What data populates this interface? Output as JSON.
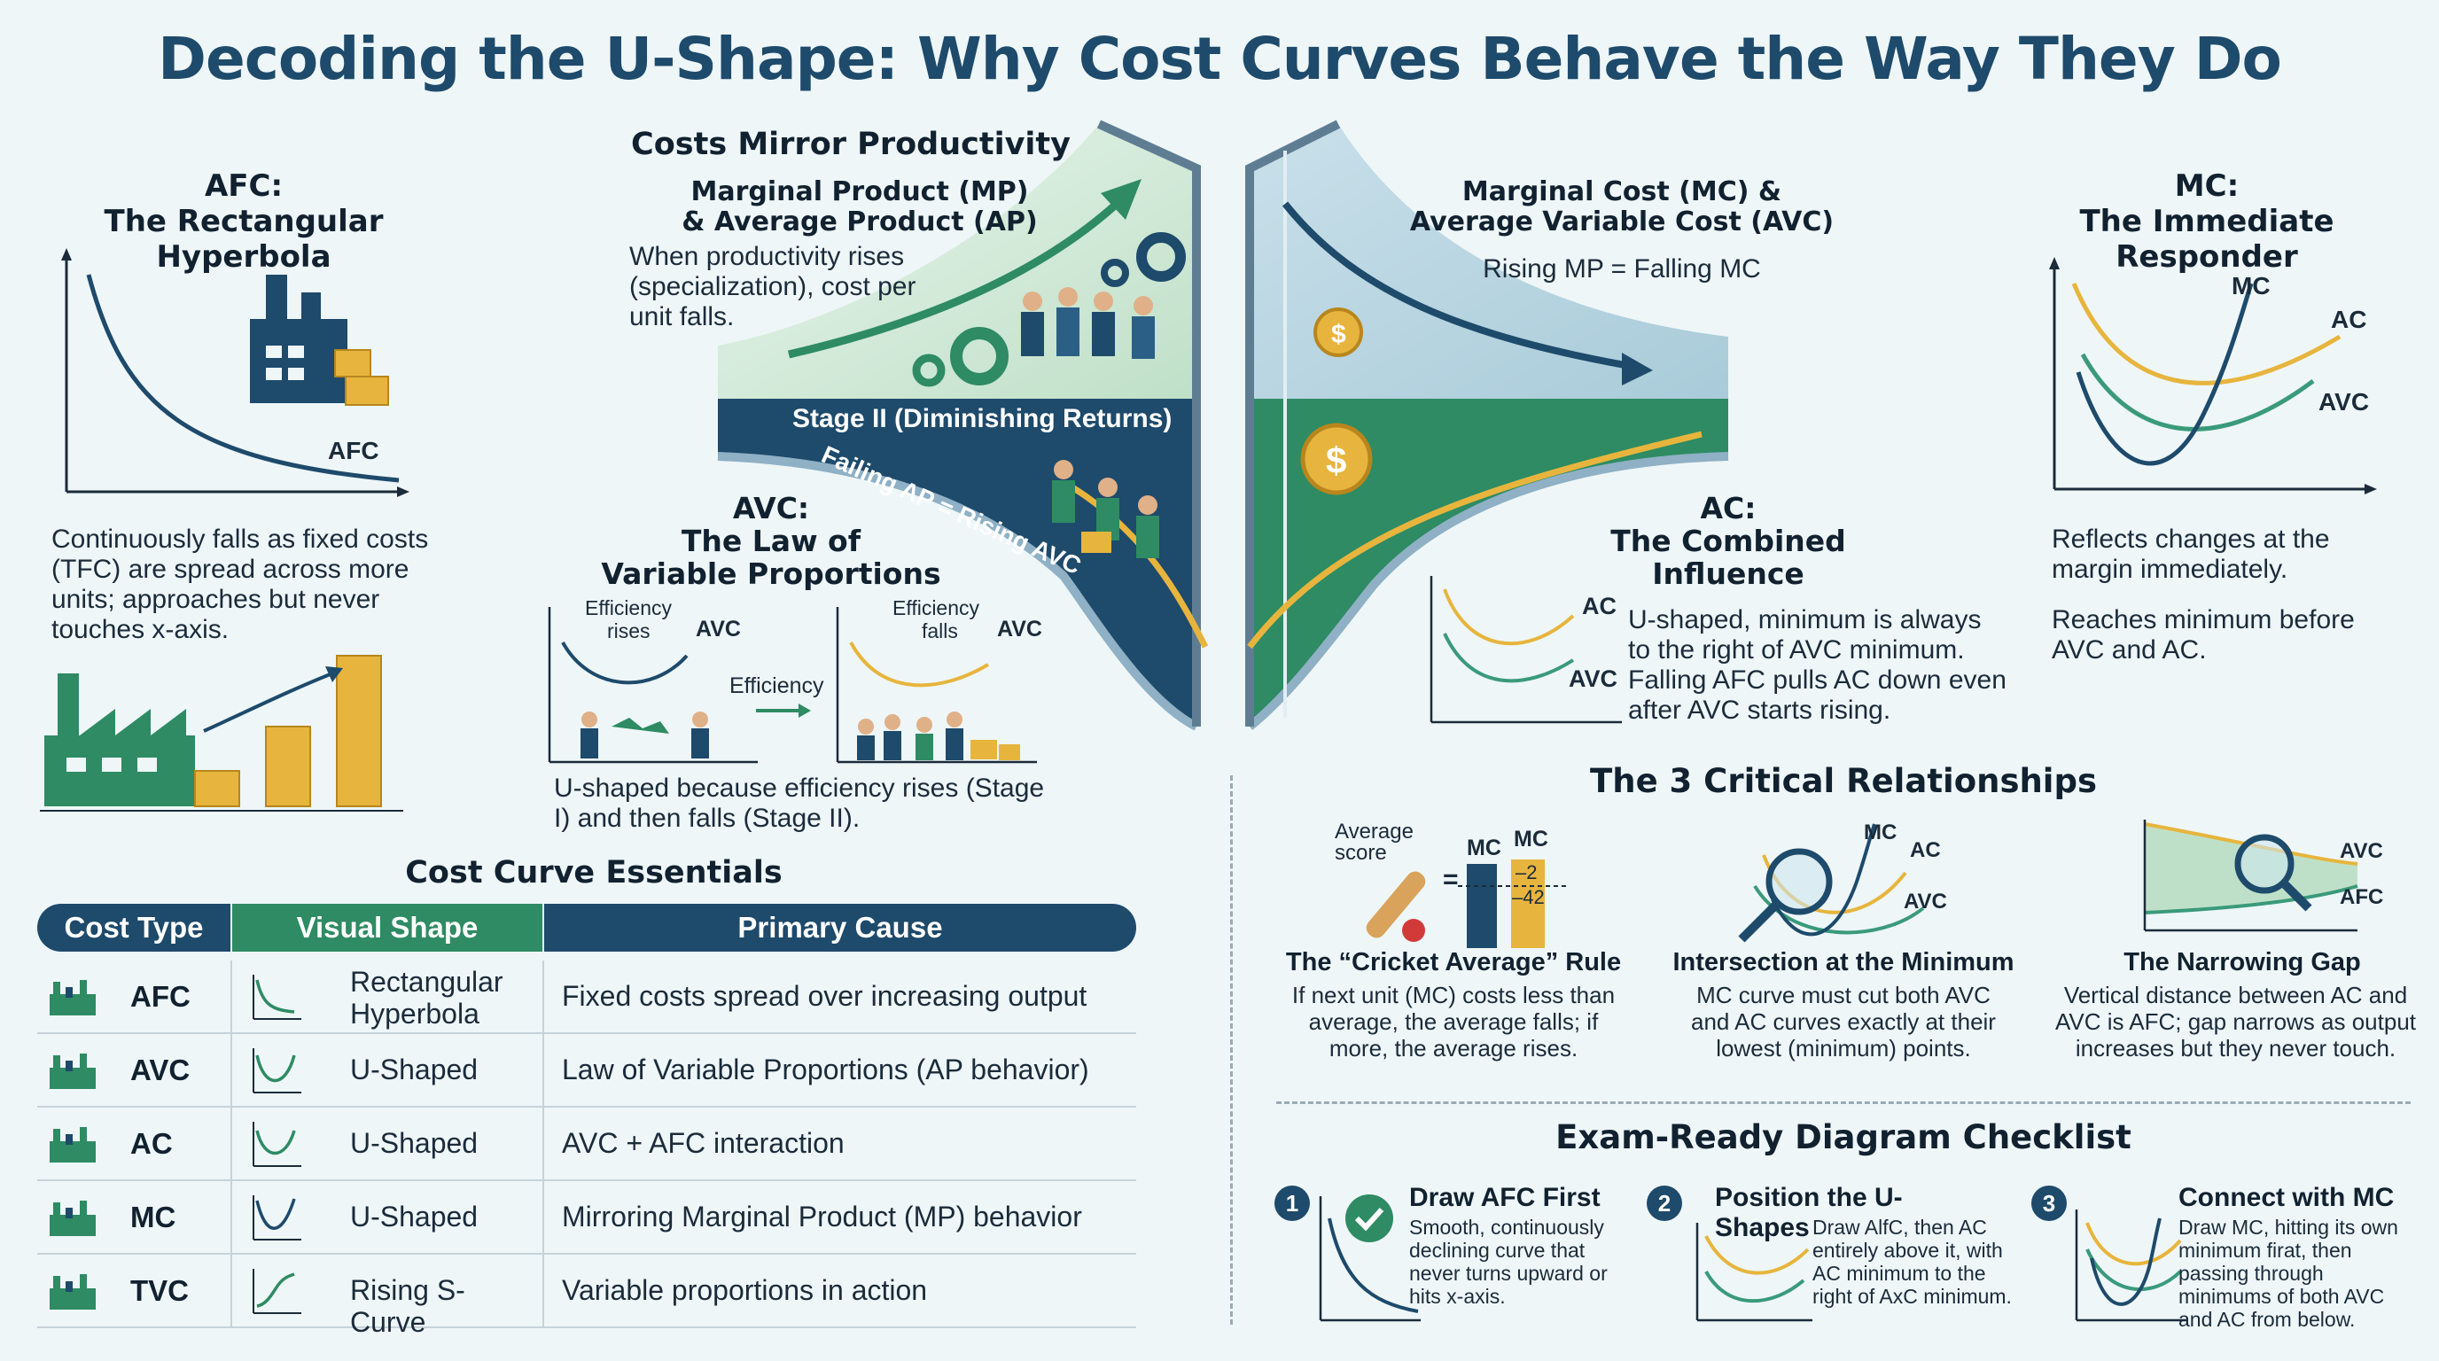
{
  "title": "Decoding the U-Shape: Why Cost Curves Behave the Way They Do",
  "afc": {
    "heading_line1": "AFC:",
    "heading_line2": "The Rectangular Hyperbola",
    "curve_label": "AFC",
    "description": "Continuously falls as fixed costs (TFC) are spread across more units; approaches but never touches x-axis."
  },
  "productivity": {
    "heading": "Costs Mirror Productivity",
    "mp_ap_line1": "Marginal Product (MP)",
    "mp_ap_line2": "& Average Product (AP)",
    "mp_ap_text": "When productivity rises (specialization), cost per unit falls.",
    "stage_banner": "Stage II (Diminishing Returns)",
    "failing_text": "Failing AP = Rising AVC",
    "mc_avc_line1": "Marginal Cost (MC) &",
    "mc_avc_line2": "Average Variable Cost (AVC)",
    "mc_avc_text": "Rising MP = Falling MC"
  },
  "avc": {
    "heading_line1": "AVC:",
    "heading_line2": "The Law of",
    "heading_line3": "Variable Proportions",
    "eff_rises_1": "Efficiency",
    "eff_rises_2": "rises",
    "eff_falls_1": "Efficiency",
    "eff_falls_2": "falls",
    "curve_label": "AVC",
    "arrow_label": "Efficiency",
    "description": "U-shaped because efficiency rises (Stage I) and then falls (Stage II)."
  },
  "ac": {
    "heading_line1": "AC:",
    "heading_line2": "The Combined",
    "heading_line3": "Influence",
    "label_ac": "AC",
    "label_avc": "AVC",
    "description": "U-shaped, minimum is always to the right of AVC minimum. Falling AFC pulls AC down even after AVC starts rising."
  },
  "mc": {
    "heading_line1": "MC:",
    "heading_line2": "The Immediate Responder",
    "label_mc": "MC",
    "label_ac": "AC",
    "label_avc": "AVC",
    "text1": "Reflects changes at the margin immediately.",
    "text2": "Reaches minimum before AVC and AC."
  },
  "essentials": {
    "heading": "Cost Curve Essentials",
    "columns": [
      "Cost Type",
      "Visual Shape",
      "Primary Cause"
    ],
    "rows": [
      {
        "type": "AFC",
        "shape": "Rectangular Hyperbola",
        "cause": "Fixed costs spread over increasing output",
        "icon": "factory-icon"
      },
      {
        "type": "AVC",
        "shape": "U-Shaped",
        "cause": "Law of Variable Proportions (AP behavior)",
        "icon": "bar-chart-icon"
      },
      {
        "type": "AC",
        "shape": "U-Shaped",
        "cause": "AVC + AFC interaction",
        "icon": "funnel-icon"
      },
      {
        "type": "MC",
        "shape": "U-Shaped",
        "cause": "Mirroring Marginal Product (MP) behavior",
        "icon": "trend-up-icon"
      },
      {
        "type": "TVC",
        "shape": "Rising S-Curve",
        "cause": "Variable proportions in action",
        "icon": "growth-chart-icon"
      }
    ],
    "header_colors": [
      "#1e4a6b",
      "#2e8b63",
      "#1e4a6b"
    ]
  },
  "relationships": {
    "heading": "The 3 Critical Relationships",
    "cricket": {
      "title": "The “Cricket Average” Rule",
      "body": "If next unit (MC) costs less than average, the average falls; if more, the average rises.",
      "label_avg1": "Average",
      "label_avg2": "score",
      "label_mc1": "MC",
      "label_mc2": "MC",
      "val1": "–2",
      "val2": "–42",
      "equals": "="
    },
    "intersection": {
      "title": "Intersection at the Minimum",
      "body": "MC curve must cut both AVC and AC curves exactly at their lowest (minimum) points.",
      "label_mc": "MC",
      "label_ac": "AC",
      "label_avc": "AVC"
    },
    "gap": {
      "title": "The Narrowing Gap",
      "body": "Vertical distance between AC and AVC is AFC; gap narrows as output increases but they never touch.",
      "label_avc": "AVC",
      "label_afc": "AFC"
    }
  },
  "checklist": {
    "heading": "Exam-Ready Diagram Checklist",
    "items": [
      {
        "num": "1",
        "title": "Draw AFC First",
        "body": "Smooth, continuously declining curve that never turns upward or hits x-axis."
      },
      {
        "num": "2",
        "title": "Position the U-Shapes",
        "body": "Draw AlfC, then AC entirely above it, with AC minimum to the right of AxC minimum."
      },
      {
        "num": "3",
        "title": "Connect with MC",
        "body": "Draw MC, hitting its own minimum firat, then passing through minimums of both AVC and AC from below."
      }
    ]
  },
  "colors": {
    "navy": "#1e4a6b",
    "green": "#2e8b63",
    "gold": "#e7b53d",
    "teal": "#3a9a7a"
  }
}
